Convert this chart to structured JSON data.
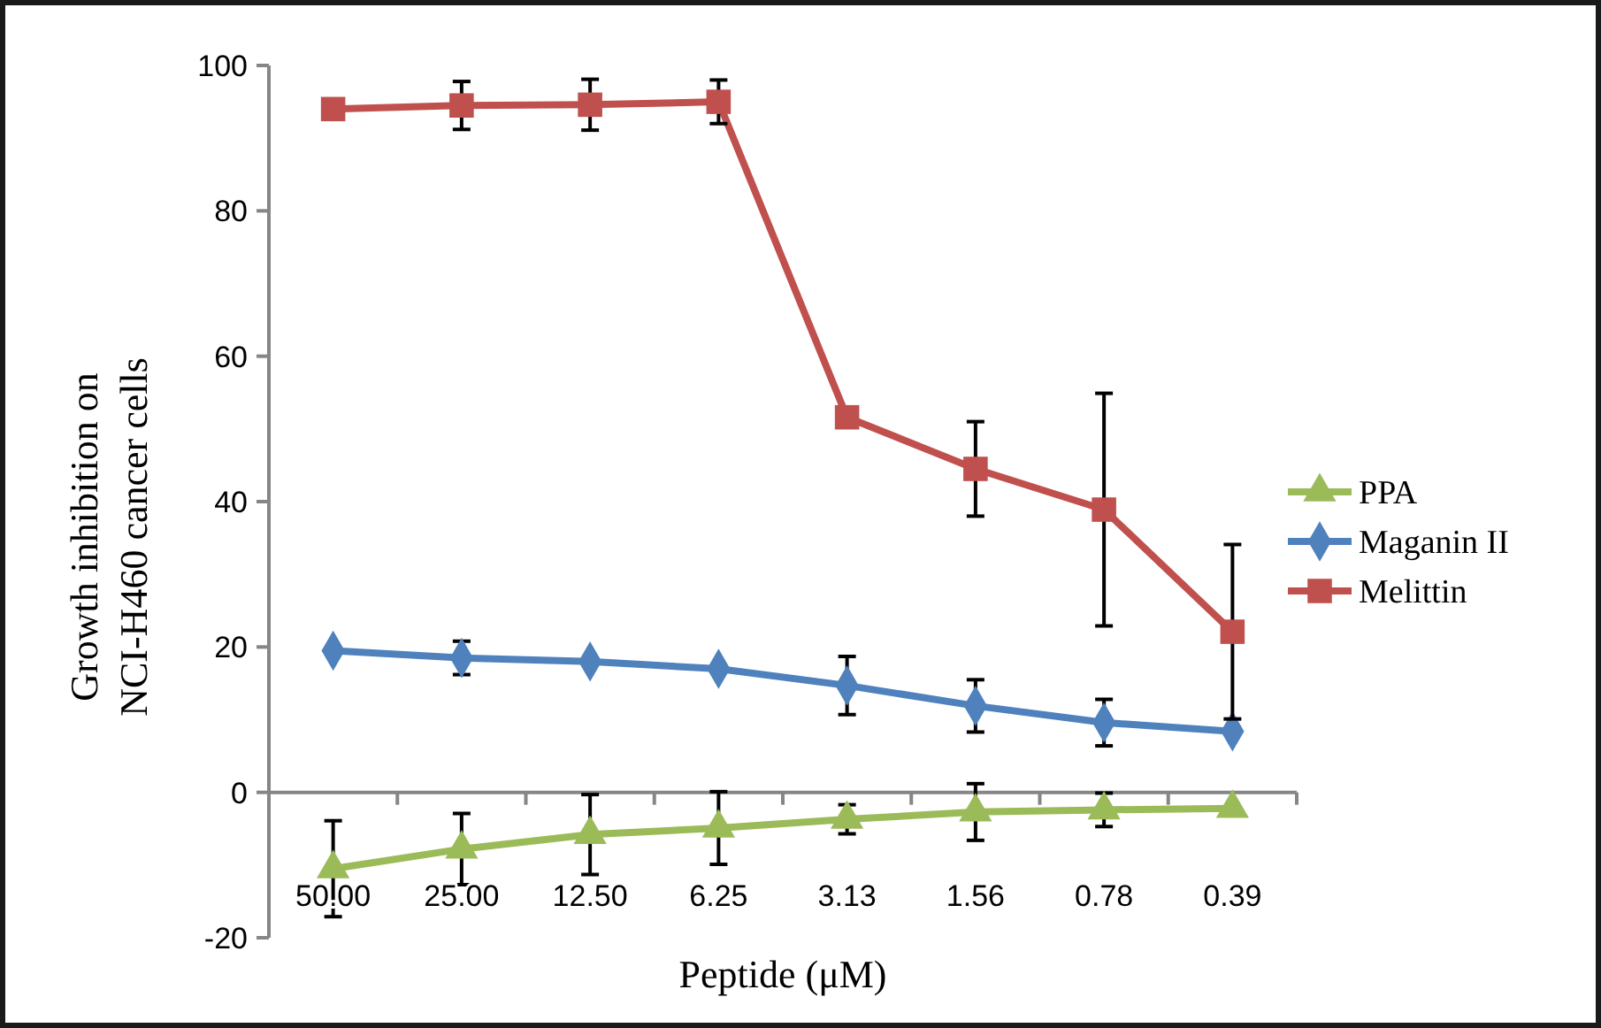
{
  "chart_data": {
    "type": "line",
    "xlabel": "Peptide (μM)",
    "ylabel": "Growth inhibition on NCI-H460 cancer cells",
    "categories": [
      "50.00",
      "25.00",
      "12.50",
      "6.25",
      "3.13",
      "1.56",
      "0.78",
      "0.39"
    ],
    "ylim": [
      -20,
      100
    ],
    "yticks": [
      -20,
      0,
      20,
      40,
      60,
      80,
      100
    ],
    "legend": "right",
    "series": [
      {
        "name": "PPA",
        "color": "#9bbb59",
        "marker": "triangle",
        "values": [
          -10.5,
          -7.8,
          -5.8,
          -4.9,
          -3.7,
          -2.7,
          -2.4,
          -2.2
        ],
        "errors": [
          6.6,
          4.9,
          5.5,
          5,
          2,
          3.9,
          2.3,
          null
        ]
      },
      {
        "name": "Maganin II",
        "color": "#4f81bd",
        "marker": "diamond",
        "values": [
          19.5,
          18.5,
          18,
          17,
          14.7,
          11.9,
          9.6,
          8.4
        ],
        "errors": [
          null,
          2.3,
          null,
          null,
          4,
          3.6,
          3.2,
          null
        ]
      },
      {
        "name": "Melittin",
        "color": "#c0504d",
        "marker": "square",
        "values": [
          94,
          94.5,
          94.6,
          95,
          51.6,
          44.5,
          38.9,
          22.1
        ],
        "errors": [
          null,
          3.3,
          3.5,
          3,
          null,
          6.5,
          16,
          12
        ]
      }
    ]
  }
}
